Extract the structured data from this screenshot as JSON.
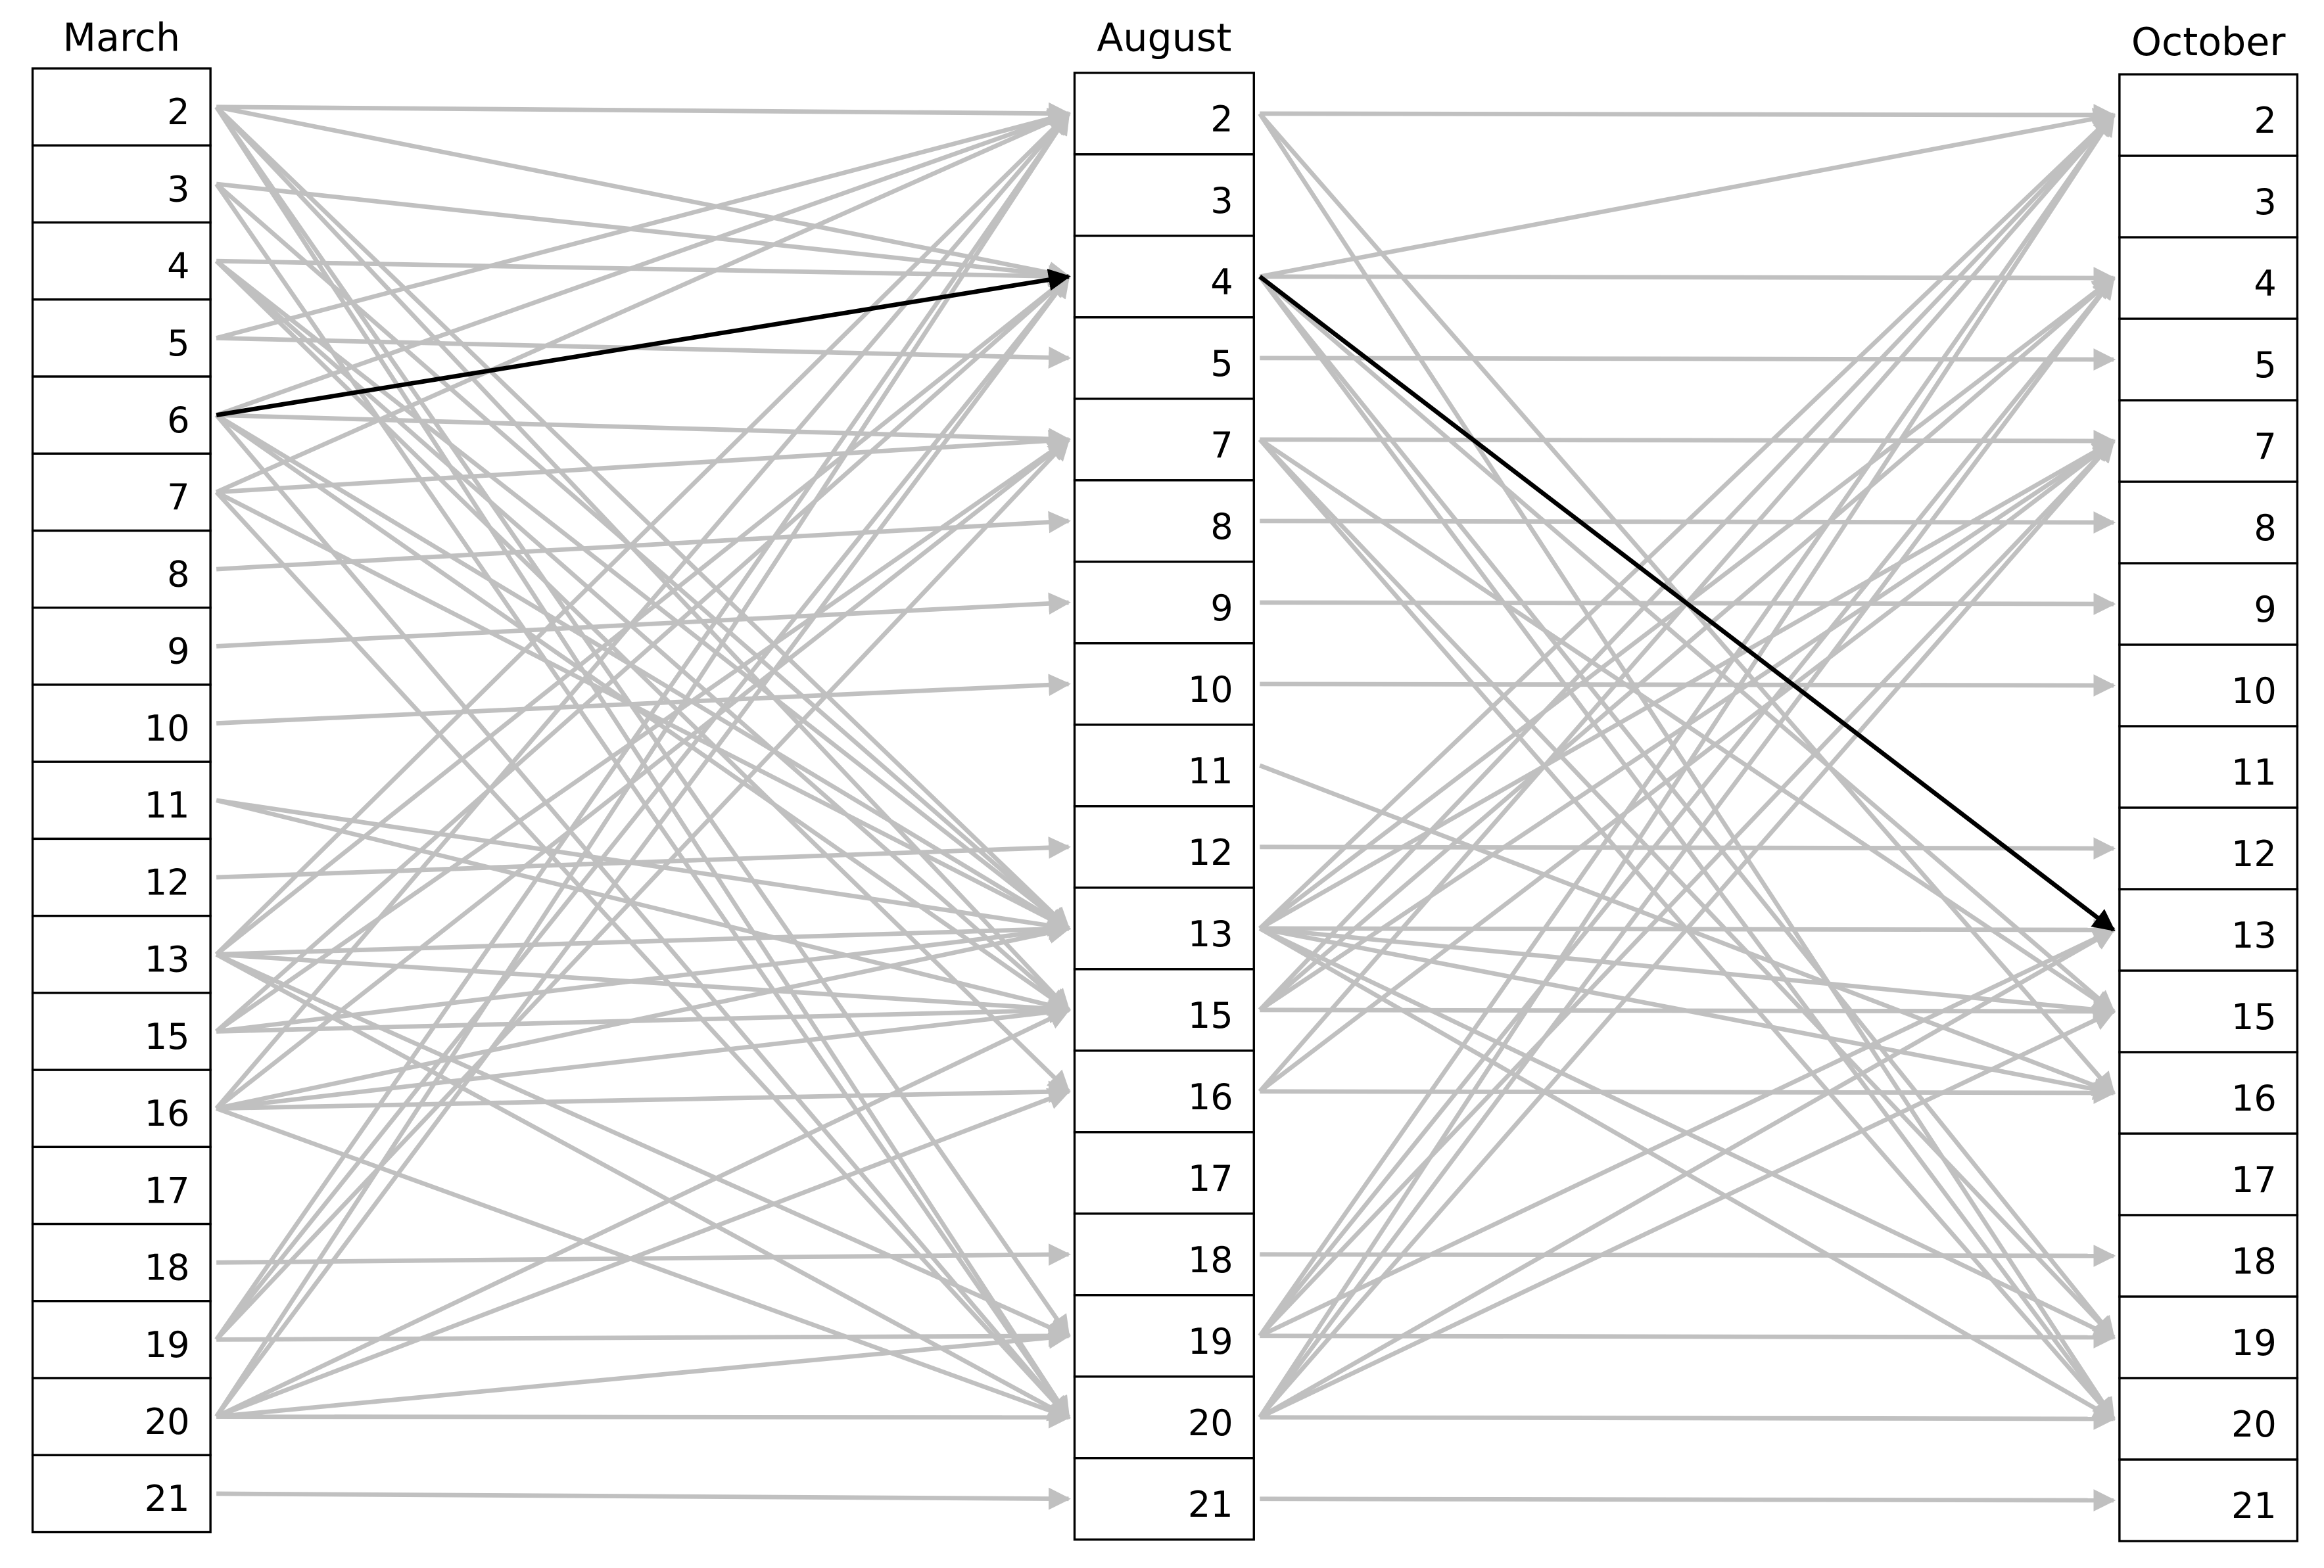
{
  "columns": [
    {
      "title": "March",
      "rows": [
        "2",
        "3",
        "4",
        "5",
        "6",
        "7",
        "8",
        "9",
        "10",
        "11",
        "12",
        "13",
        "15",
        "16",
        "17",
        "18",
        "19",
        "20",
        "21"
      ]
    },
    {
      "title": "August",
      "rows": [
        "2",
        "3",
        "4",
        "5",
        "7",
        "8",
        "9",
        "10",
        "11",
        "12",
        "13",
        "15",
        "16",
        "17",
        "18",
        "19",
        "20",
        "21"
      ]
    },
    {
      "title": "October",
      "rows": [
        "2",
        "3",
        "4",
        "5",
        "7",
        "8",
        "9",
        "10",
        "11",
        "12",
        "13",
        "15",
        "16",
        "17",
        "18",
        "19",
        "20",
        "21"
      ]
    }
  ]
}
